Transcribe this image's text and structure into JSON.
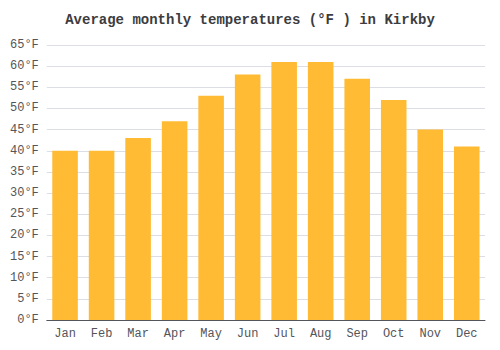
{
  "chart_data": {
    "type": "bar",
    "title": "Average monthly temperatures (°F ) in Kirkby",
    "categories": [
      "Jan",
      "Feb",
      "Mar",
      "Apr",
      "May",
      "Jun",
      "Jul",
      "Aug",
      "Sep",
      "Oct",
      "Nov",
      "Dec"
    ],
    "values": [
      40,
      40,
      43,
      47,
      53,
      58,
      61,
      61,
      57,
      52,
      45,
      41
    ],
    "color": "#FFBB33",
    "ylim": [
      0,
      65
    ],
    "yticks": [
      {
        "value": 0,
        "label": "0°F"
      },
      {
        "value": 5,
        "label": "5°F"
      },
      {
        "value": 10,
        "label": "10°F"
      },
      {
        "value": 15,
        "label": "15°F"
      },
      {
        "value": 20,
        "label": "20°F"
      },
      {
        "value": 25,
        "label": "25°F"
      },
      {
        "value": 30,
        "label": "30°F"
      },
      {
        "value": 35,
        "label": "35°F"
      },
      {
        "value": 40,
        "label": "40°F"
      },
      {
        "value": 45,
        "label": "45°F"
      },
      {
        "value": 50,
        "label": "50°F"
      },
      {
        "value": 55,
        "label": "55°F"
      },
      {
        "value": 60,
        "label": "60°F"
      },
      {
        "value": 65,
        "label": "65°F"
      }
    ],
    "grid": true
  }
}
